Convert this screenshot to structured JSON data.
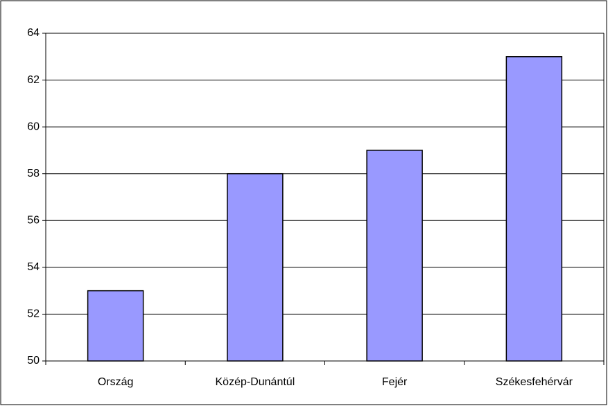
{
  "chart_data": {
    "type": "bar",
    "categories": [
      "Ország",
      "Közép-Dunántúl",
      "Fejér",
      "Székesfehérvár"
    ],
    "values": [
      53,
      58,
      59,
      63
    ],
    "color": "#9999ff",
    "ylim": [
      50,
      64
    ],
    "yticks": [
      50,
      52,
      54,
      56,
      58,
      60,
      62,
      64
    ],
    "grid": true
  }
}
